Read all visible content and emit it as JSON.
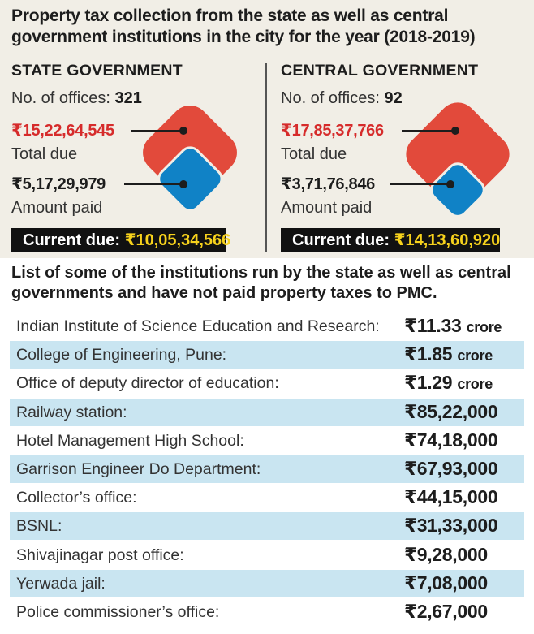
{
  "headline": "Property tax collection from the state as well as central government institutions in the city for the year (2018-2019)",
  "offices_label": "No. of offices:",
  "total_due_label": "Total due",
  "amount_paid_label": "Amount paid",
  "current_due_label": "Current due:",
  "colors": {
    "total_due": "#e24a3b",
    "amount_paid": "#1082c6",
    "due_text": "#d62b2b",
    "current_amount": "#f7d21c"
  },
  "chart_data": [
    {
      "type": "other",
      "title": "STATE GOVERNMENT",
      "offices": "321",
      "total_due": "₹15,22,64,545",
      "amount_paid": "₹5,17,29,979",
      "current_due": "₹10,05,34,566",
      "values": {
        "total_due": 152264545,
        "amount_paid": 51729979,
        "current_due": 100534566
      }
    },
    {
      "type": "other",
      "title": "CENTRAL GOVERNMENT",
      "offices": "92",
      "total_due": "₹17,85,37,766",
      "amount_paid": "₹3,71,76,846",
      "current_due": "₹14,13,60,920",
      "values": {
        "total_due": 178537766,
        "amount_paid": 37176846,
        "current_due": 141360920
      }
    }
  ],
  "list": {
    "title": "List of some of the institutions run by the state as well as central governments and have not paid property taxes to PMC.",
    "rows": [
      {
        "name": "Indian Institute of Science Education and Research:",
        "amount": "₹11.33",
        "unit": "crore"
      },
      {
        "name": "College of Engineering, Pune:",
        "amount": "₹1.85",
        "unit": "crore"
      },
      {
        "name": "Office of deputy director of education:",
        "amount": "₹1.29",
        "unit": "crore"
      },
      {
        "name": "Railway station:",
        "amount": "₹85,22,000",
        "unit": ""
      },
      {
        "name": "Hotel Management High School:",
        "amount": "₹74,18,000",
        "unit": ""
      },
      {
        "name": "Garrison Engineer Do Department:",
        "amount": "₹67,93,000",
        "unit": ""
      },
      {
        "name": "Collector’s office:",
        "amount": "₹44,15,000",
        "unit": ""
      },
      {
        "name": "BSNL:",
        "amount": "₹31,33,000",
        "unit": ""
      },
      {
        "name": "Shivajinagar post office:",
        "amount": "₹9,28,000",
        "unit": ""
      },
      {
        "name": "Yerwada jail:",
        "amount": "₹7,08,000",
        "unit": ""
      },
      {
        "name": "Police commissioner’s office:",
        "amount": "₹2,67,000",
        "unit": ""
      }
    ]
  }
}
